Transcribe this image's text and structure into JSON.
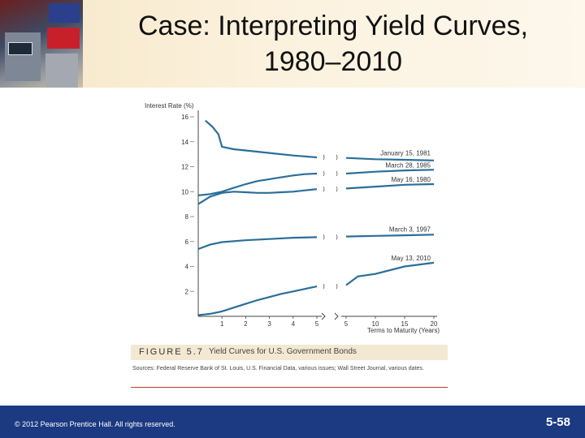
{
  "slide": {
    "title": "Case: Interpreting Yield Curves,\n1980–2010",
    "copyright": "© 2012 Pearson Prentice Hall. All rights reserved.",
    "slide_number": "5-58"
  },
  "figure": {
    "number": "FIGURE 5.7",
    "caption": "Yield Curves for U.S. Government Bonds",
    "sources": "Sources: Federal Reserve Bank of St. Louis, U.S. Financial Data, various issues; Wall Street Journal, various dates."
  },
  "chart_data": {
    "type": "line",
    "ylabel": "Interest Rate (%)",
    "xlabel": "Terms to Maturity (Years)",
    "ylim": [
      0,
      16
    ],
    "yticks": [
      "2",
      "4",
      "6",
      "8",
      "10",
      "12",
      "14",
      "16"
    ],
    "x_short_ticks": [
      "1",
      "2",
      "3",
      "4",
      "5"
    ],
    "x_long_ticks": [
      "5",
      "10",
      "15",
      "20"
    ],
    "series": [
      {
        "name": "January 15, 1981",
        "short": [
          [
            0.3,
            15.7
          ],
          [
            0.6,
            15.2
          ],
          [
            0.85,
            14.6
          ],
          [
            1,
            13.6
          ],
          [
            1.5,
            13.4
          ],
          [
            2,
            13.3
          ],
          [
            3,
            13.1
          ],
          [
            4,
            12.9
          ],
          [
            5,
            12.75
          ]
        ],
        "long": [
          [
            5,
            12.7
          ],
          [
            10,
            12.6
          ],
          [
            15,
            12.55
          ],
          [
            20,
            12.5
          ]
        ]
      },
      {
        "name": "March 28, 1985",
        "short": [
          [
            0,
            9.7
          ],
          [
            0.5,
            9.8
          ],
          [
            1,
            10.0
          ],
          [
            1.5,
            10.3
          ],
          [
            2,
            10.6
          ],
          [
            2.5,
            10.85
          ],
          [
            3,
            11.0
          ],
          [
            3.5,
            11.15
          ],
          [
            4,
            11.3
          ],
          [
            4.5,
            11.4
          ],
          [
            5,
            11.45
          ]
        ],
        "long": [
          [
            5,
            11.45
          ],
          [
            10,
            11.6
          ],
          [
            15,
            11.7
          ],
          [
            20,
            11.75
          ]
        ]
      },
      {
        "name": "May 16, 1980",
        "short": [
          [
            0,
            9.0
          ],
          [
            0.5,
            9.6
          ],
          [
            1,
            9.9
          ],
          [
            1.5,
            10.0
          ],
          [
            2,
            9.95
          ],
          [
            2.5,
            9.9
          ],
          [
            3,
            9.9
          ],
          [
            3.5,
            9.95
          ],
          [
            4,
            10.0
          ],
          [
            4.5,
            10.1
          ],
          [
            5,
            10.2
          ]
        ],
        "long": [
          [
            5,
            10.25
          ],
          [
            10,
            10.4
          ],
          [
            15,
            10.55
          ],
          [
            20,
            10.6
          ]
        ]
      },
      {
        "name": "March 3, 1997",
        "short": [
          [
            0,
            5.4
          ],
          [
            0.5,
            5.75
          ],
          [
            1,
            5.95
          ],
          [
            2,
            6.1
          ],
          [
            3,
            6.2
          ],
          [
            4,
            6.3
          ],
          [
            5,
            6.35
          ]
        ],
        "long": [
          [
            5,
            6.4
          ],
          [
            10,
            6.45
          ],
          [
            15,
            6.5
          ],
          [
            20,
            6.55
          ]
        ]
      },
      {
        "name": "May 13, 2010",
        "short": [
          [
            0,
            0.1
          ],
          [
            0.5,
            0.2
          ],
          [
            1,
            0.4
          ],
          [
            1.5,
            0.7
          ],
          [
            2,
            1.0
          ],
          [
            2.5,
            1.3
          ],
          [
            3,
            1.55
          ],
          [
            3.5,
            1.8
          ],
          [
            4,
            2.0
          ],
          [
            4.5,
            2.2
          ],
          [
            5,
            2.4
          ]
        ],
        "long": [
          [
            5,
            2.5
          ],
          [
            7,
            3.2
          ],
          [
            10,
            3.4
          ],
          [
            15,
            4.0
          ],
          [
            20,
            4.3
          ]
        ]
      }
    ],
    "label_values": [
      12.7,
      11.75,
      10.6,
      6.6,
      4.3
    ]
  }
}
